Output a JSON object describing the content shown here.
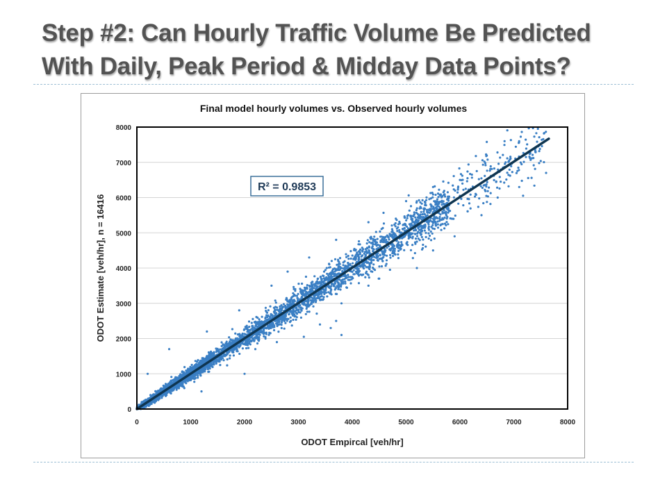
{
  "slide": {
    "title_line1": "Step #2:  Can Hourly Traffic Volume Be Predicted",
    "title_line2": "With Daily, Peak Period & Midday Data Points?"
  },
  "colors": {
    "points": "#3a7fc4",
    "fit_line": "#0f3550",
    "title_text": "#535353",
    "divider": "#9dbfd4"
  },
  "chart_data": {
    "type": "scatter",
    "title": "Final model hourly volumes vs. Observed hourly volumes",
    "xlabel": "ODOT Empircal [veh/hr]",
    "ylabel": "ODOT Estimate [veh/hr], n = 16416",
    "xlim": [
      0,
      8000
    ],
    "ylim": [
      0,
      8000
    ],
    "xticks": [
      0,
      1000,
      2000,
      3000,
      4000,
      5000,
      6000,
      7000,
      8000
    ],
    "yticks": [
      0,
      1000,
      2000,
      3000,
      4000,
      5000,
      6000,
      7000,
      8000
    ],
    "grid": "horizontal",
    "n": 16416,
    "annotation": "R² = 0.9853",
    "fit_line": {
      "x": [
        0,
        7650
      ],
      "y": [
        0,
        7670
      ]
    },
    "series": [
      {
        "values": [
          [
            150,
            170
          ],
          [
            300,
            280
          ],
          [
            450,
            480
          ],
          [
            600,
            560
          ],
          [
            800,
            820
          ],
          [
            1000,
            950
          ],
          [
            1200,
            1180
          ],
          [
            1400,
            1450
          ],
          [
            1600,
            1580
          ],
          [
            1800,
            1850
          ],
          [
            2000,
            1950
          ],
          [
            2200,
            2250
          ],
          [
            2400,
            2400
          ],
          [
            2600,
            2650
          ],
          [
            2800,
            2750
          ],
          [
            3000,
            3020
          ],
          [
            3200,
            3250
          ],
          [
            3400,
            3380
          ],
          [
            3600,
            3650
          ],
          [
            3800,
            3780
          ],
          [
            4000,
            4050
          ],
          [
            4200,
            4180
          ],
          [
            4400,
            4450
          ],
          [
            4600,
            4620
          ],
          [
            4800,
            4820
          ],
          [
            5000,
            5050
          ],
          [
            5200,
            5180
          ],
          [
            5400,
            5420
          ],
          [
            5600,
            5650
          ],
          [
            5800,
            5780
          ],
          [
            6000,
            6050
          ],
          [
            6200,
            6250
          ],
          [
            6500,
            6500
          ],
          [
            6800,
            6850
          ],
          [
            7100,
            7150
          ],
          [
            7400,
            7300
          ],
          [
            1300,
            2200
          ],
          [
            1900,
            2800
          ],
          [
            2500,
            3500
          ],
          [
            2800,
            3900
          ],
          [
            3200,
            4300
          ],
          [
            3700,
            4800
          ],
          [
            4300,
            5300
          ],
          [
            5000,
            5900
          ],
          [
            5500,
            6300
          ],
          [
            6000,
            6500
          ],
          [
            600,
            1700
          ],
          [
            200,
            1000
          ],
          [
            2000,
            1000
          ],
          [
            1200,
            500
          ],
          [
            3400,
            2400
          ],
          [
            3600,
            2300
          ],
          [
            3800,
            2100
          ],
          [
            3700,
            2500
          ],
          [
            3100,
            2050
          ],
          [
            4300,
            3500
          ],
          [
            4500,
            3700
          ],
          [
            4700,
            3950
          ],
          [
            5200,
            4000
          ],
          [
            5500,
            4500
          ],
          [
            5900,
            4900
          ],
          [
            6400,
            5500
          ],
          [
            6700,
            6000
          ],
          [
            7100,
            6300
          ],
          [
            7600,
            6700
          ],
          [
            3800,
            3000
          ],
          [
            2600,
            1900
          ],
          [
            2200,
            1700
          ]
        ]
      }
    ]
  }
}
